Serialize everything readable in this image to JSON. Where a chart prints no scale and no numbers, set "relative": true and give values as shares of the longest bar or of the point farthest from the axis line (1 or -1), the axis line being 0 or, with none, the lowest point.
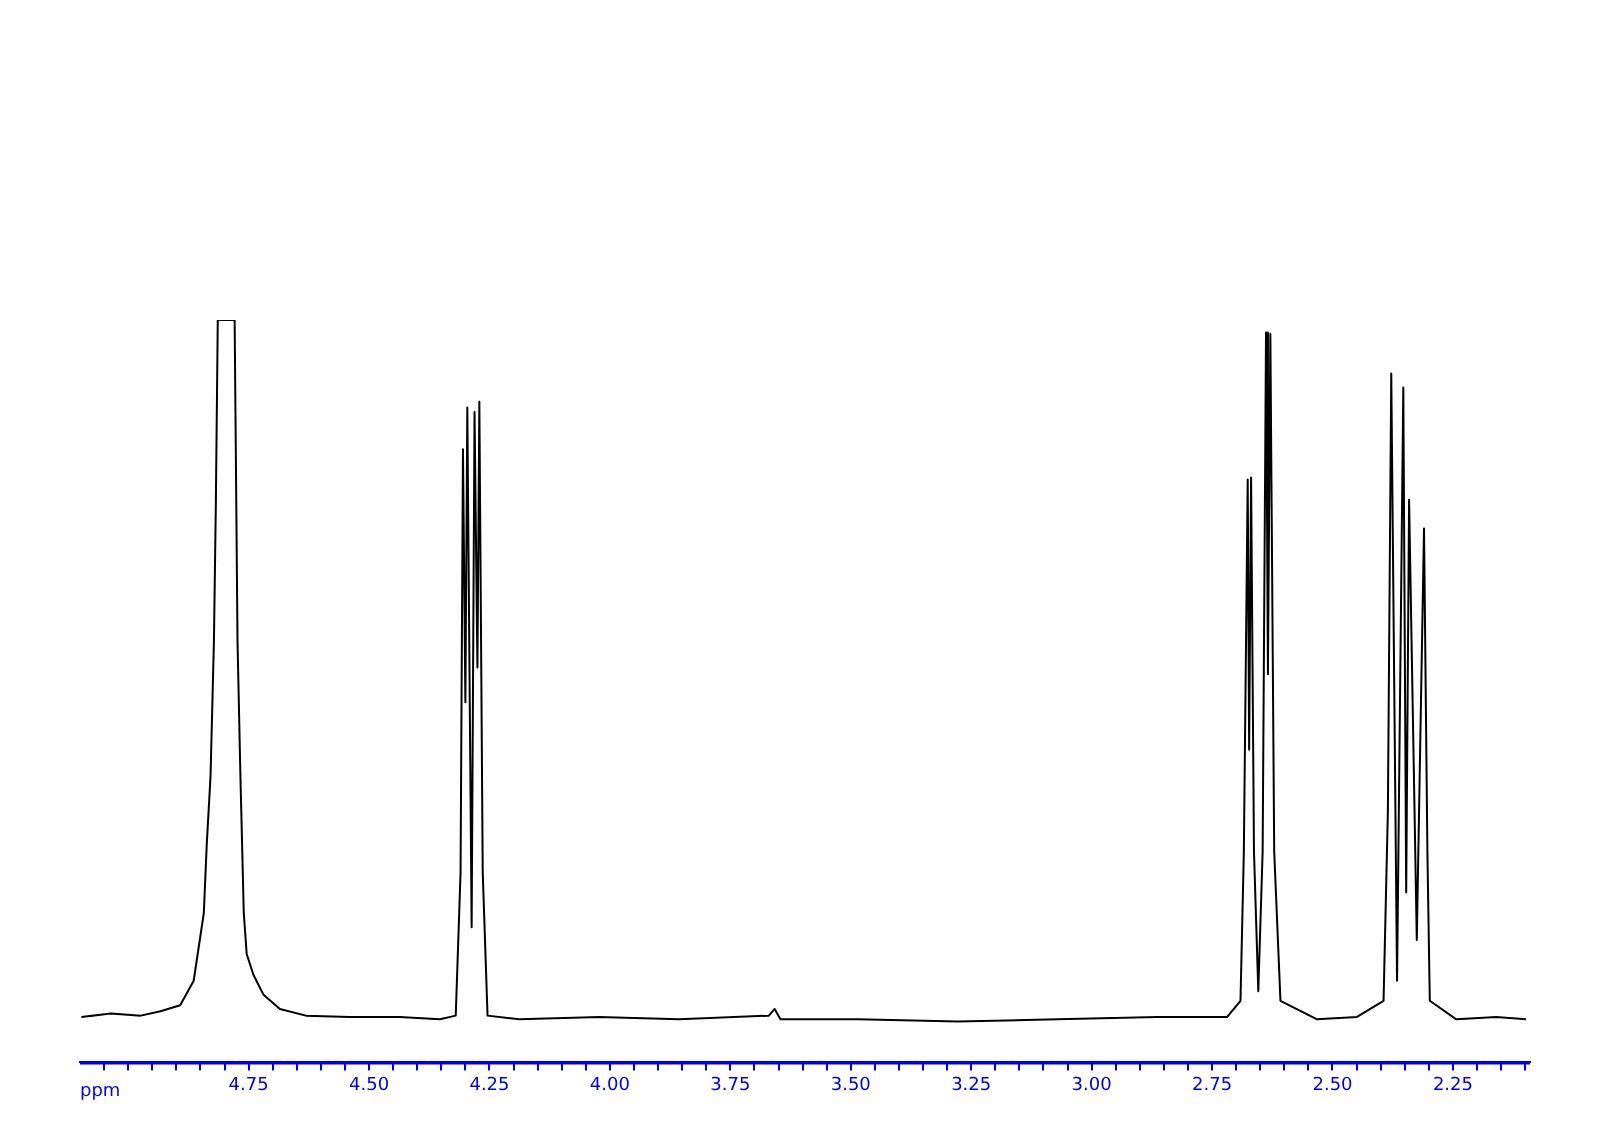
{
  "chart_data": {
    "type": "line",
    "xlabel": "ppm",
    "relative": true,
    "grid": false,
    "legend": false,
    "line_style": "solid",
    "xlim": [
      5.1,
      2.09
    ],
    "xticks": [
      {
        "value": 5.05,
        "label": null
      },
      {
        "value": 5.0,
        "label": null
      },
      {
        "value": 4.95,
        "label": null
      },
      {
        "value": 4.9,
        "label": null
      },
      {
        "value": 4.85,
        "label": null
      },
      {
        "value": 4.8,
        "label": null
      },
      4.75,
      {
        "value": 4.7,
        "label": null
      },
      {
        "value": 4.65,
        "label": null
      },
      {
        "value": 4.6,
        "label": null
      },
      {
        "value": 4.55,
        "label": null
      },
      {
        "value": 4.5,
        "label": "4.50"
      },
      {
        "value": 4.45,
        "label": null
      },
      {
        "value": 4.4,
        "label": null
      },
      {
        "value": 4.35,
        "label": null
      },
      {
        "value": 4.3,
        "label": null
      },
      4.25,
      {
        "value": 4.2,
        "label": null
      },
      {
        "value": 4.15,
        "label": null
      },
      {
        "value": 4.1,
        "label": null
      },
      {
        "value": 4.05,
        "label": null
      },
      {
        "value": 4.0,
        "label": "4.00"
      },
      {
        "value": 3.95,
        "label": null
      },
      {
        "value": 3.9,
        "label": null
      },
      {
        "value": 3.85,
        "label": null
      },
      {
        "value": 3.8,
        "label": null
      },
      3.75,
      {
        "value": 3.7,
        "label": null
      },
      {
        "value": 3.65,
        "label": null
      },
      {
        "value": 3.6,
        "label": null
      },
      {
        "value": 3.55,
        "label": null
      },
      {
        "value": 3.5,
        "label": "3.50"
      },
      {
        "value": 3.45,
        "label": null
      },
      {
        "value": 3.4,
        "label": null
      },
      {
        "value": 3.35,
        "label": null
      },
      {
        "value": 3.3,
        "label": null
      },
      3.25,
      {
        "value": 3.2,
        "label": null
      },
      {
        "value": 3.15,
        "label": null
      },
      {
        "value": 3.1,
        "label": null
      },
      {
        "value": 3.05,
        "label": null
      },
      {
        "value": 3.0,
        "label": "3.00"
      },
      {
        "value": 2.95,
        "label": null
      },
      {
        "value": 2.9,
        "label": null
      },
      {
        "value": 2.85,
        "label": null
      },
      {
        "value": 2.8,
        "label": null
      },
      2.75,
      {
        "value": 2.7,
        "label": null
      },
      {
        "value": 2.65,
        "label": null
      },
      {
        "value": 2.6,
        "label": null
      },
      {
        "value": 2.55,
        "label": null
      },
      {
        "value": 2.5,
        "label": "2.50"
      },
      {
        "value": 2.45,
        "label": null
      },
      {
        "value": 2.4,
        "label": null
      },
      {
        "value": 2.35,
        "label": null
      },
      {
        "value": 2.3,
        "label": null
      },
      2.25,
      {
        "value": 2.2,
        "label": null
      },
      {
        "value": 2.15,
        "label": null
      },
      {
        "value": 2.1,
        "label": null
      }
    ],
    "series": [
      {
        "color": "#000000",
        "x": [
          5.097,
          5.036,
          4.974,
          4.933,
          4.892,
          4.864,
          4.843,
          4.837,
          4.829,
          4.822,
          4.818,
          4.814,
          4.779,
          4.773,
          4.767,
          4.76,
          4.754,
          4.74,
          4.719,
          4.685,
          4.631,
          4.54,
          4.436,
          4.353,
          4.32,
          4.31,
          4.305,
          4.3,
          4.296,
          4.287,
          4.281,
          4.275,
          4.271,
          4.264,
          4.254,
          4.188,
          4.022,
          3.857,
          3.67,
          3.658,
          3.646,
          3.485,
          3.278,
          3.071,
          2.864,
          2.719,
          2.691,
          2.684,
          2.676,
          2.673,
          2.669,
          2.663,
          2.654,
          2.645,
          2.638,
          2.634,
          2.629,
          2.621,
          2.608,
          2.532,
          2.45,
          2.394,
          2.385,
          2.378,
          2.366,
          2.353,
          2.347,
          2.341,
          2.325,
          2.31,
          2.303,
          2.298,
          2.243,
          2.16,
          2.098
        ],
        "values": [
          0.061,
          0.066,
          0.063,
          0.069,
          0.077,
          0.11,
          0.201,
          0.292,
          0.386,
          0.567,
          0.752,
          1,
          1,
          0.567,
          0.386,
          0.201,
          0.146,
          0.118,
          0.091,
          0.072,
          0.063,
          0.061,
          0.061,
          0.058,
          0.063,
          0.256,
          0.826,
          0.485,
          0.882,
          0.182,
          0.876,
          0.532,
          0.89,
          0.256,
          0.063,
          0.058,
          0.061,
          0.058,
          0.063,
          0.072,
          0.058,
          0.058,
          0.055,
          0.058,
          0.061,
          0.061,
          0.083,
          0.284,
          0.785,
          0.421,
          0.788,
          0.284,
          0.096,
          0.284,
          0.983,
          0.523,
          0.981,
          0.284,
          0.083,
          0.058,
          0.061,
          0.083,
          0.339,
          0.928,
          0.11,
          0.909,
          0.229,
          0.758,
          0.165,
          0.719,
          0.284,
          0.083,
          0.058,
          0.061,
          0.058
        ]
      }
    ]
  }
}
